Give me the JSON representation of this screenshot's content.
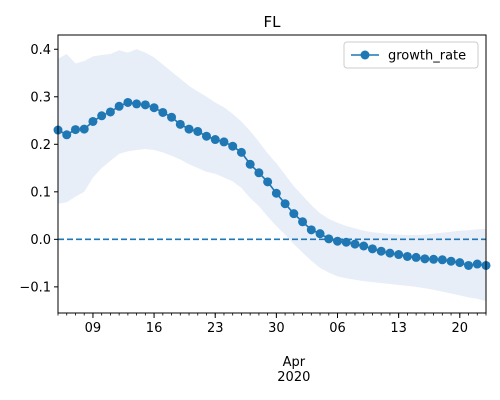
{
  "chart_data": {
    "type": "line",
    "title": "FL",
    "xlabel": "",
    "ylabel": "",
    "x_dates": [
      "2020-03-05",
      "2020-03-06",
      "2020-03-07",
      "2020-03-08",
      "2020-03-09",
      "2020-03-10",
      "2020-03-11",
      "2020-03-12",
      "2020-03-13",
      "2020-03-14",
      "2020-03-15",
      "2020-03-16",
      "2020-03-17",
      "2020-03-18",
      "2020-03-19",
      "2020-03-20",
      "2020-03-21",
      "2020-03-22",
      "2020-03-23",
      "2020-03-24",
      "2020-03-25",
      "2020-03-26",
      "2020-03-27",
      "2020-03-28",
      "2020-03-29",
      "2020-03-30",
      "2020-03-31",
      "2020-04-01",
      "2020-04-02",
      "2020-04-03",
      "2020-04-04",
      "2020-04-05",
      "2020-04-06",
      "2020-04-07",
      "2020-04-08",
      "2020-04-09",
      "2020-04-10",
      "2020-04-11",
      "2020-04-12",
      "2020-04-13",
      "2020-04-14",
      "2020-04-15",
      "2020-04-16",
      "2020-04-17",
      "2020-04-18",
      "2020-04-19",
      "2020-04-20",
      "2020-04-21",
      "2020-04-22",
      "2020-04-23"
    ],
    "xlim": [
      "2020-03-05",
      "2020-04-23"
    ],
    "ylim": [
      -0.155,
      0.43
    ],
    "x_tick_labels": [
      {
        "date": "2020-03-09",
        "label": "09"
      },
      {
        "date": "2020-03-16",
        "label": "16"
      },
      {
        "date": "2020-03-23",
        "label": "23"
      },
      {
        "date": "2020-03-30",
        "label": "30"
      },
      {
        "date": "2020-04-06",
        "label": "06"
      },
      {
        "date": "2020-04-13",
        "label": "13"
      },
      {
        "date": "2020-04-20",
        "label": "20"
      }
    ],
    "x_secondary_label": {
      "date": "2020-04-01",
      "line1": "Apr",
      "line2": "2020"
    },
    "y_ticks": [
      -0.1,
      0.0,
      0.1,
      0.2,
      0.3,
      0.4
    ],
    "y_tick_labels": [
      "−0.1",
      "0.0",
      "0.1",
      "0.2",
      "0.3",
      "0.4"
    ],
    "series": [
      {
        "name": "growth_rate",
        "color": "#1f77b4",
        "marker": "circle",
        "values": [
          0.23,
          0.22,
          0.231,
          0.232,
          0.248,
          0.26,
          0.268,
          0.28,
          0.288,
          0.285,
          0.283,
          0.277,
          0.267,
          0.257,
          0.242,
          0.232,
          0.227,
          0.217,
          0.21,
          0.205,
          0.196,
          0.183,
          0.158,
          0.14,
          0.121,
          0.097,
          0.075,
          0.054,
          0.037,
          0.02,
          0.012,
          0.001,
          -0.004,
          -0.006,
          -0.01,
          -0.014,
          -0.02,
          -0.025,
          -0.029,
          -0.032,
          -0.036,
          -0.038,
          -0.041,
          -0.042,
          -0.043,
          -0.046,
          -0.049,
          -0.055,
          -0.052,
          -0.055
        ],
        "band_upper": [
          0.38,
          0.39,
          0.37,
          0.375,
          0.385,
          0.388,
          0.39,
          0.398,
          0.393,
          0.4,
          0.393,
          0.383,
          0.368,
          0.353,
          0.338,
          0.323,
          0.311,
          0.3,
          0.288,
          0.278,
          0.264,
          0.248,
          0.228,
          0.205,
          0.181,
          0.16,
          0.136,
          0.112,
          0.092,
          0.072,
          0.055,
          0.043,
          0.035,
          0.028,
          0.023,
          0.018,
          0.015,
          0.013,
          0.011,
          0.01,
          0.009,
          0.009,
          0.01,
          0.012,
          0.014,
          0.016,
          0.018,
          0.019,
          0.021,
          0.022
        ],
        "band_lower": [
          0.075,
          0.078,
          0.09,
          0.1,
          0.13,
          0.15,
          0.165,
          0.18,
          0.185,
          0.188,
          0.19,
          0.188,
          0.183,
          0.176,
          0.168,
          0.158,
          0.15,
          0.142,
          0.138,
          0.13,
          0.122,
          0.108,
          0.087,
          0.07,
          0.048,
          0.028,
          0.01,
          -0.01,
          -0.028,
          -0.045,
          -0.06,
          -0.07,
          -0.078,
          -0.082,
          -0.085,
          -0.088,
          -0.09,
          -0.092,
          -0.094,
          -0.096,
          -0.098,
          -0.1,
          -0.103,
          -0.106,
          -0.11,
          -0.114,
          -0.118,
          -0.122,
          -0.125,
          -0.13
        ],
        "band_color": "#aec7e8"
      }
    ],
    "reference_line": {
      "y": 0.0,
      "style": "dashed",
      "color": "#1f77b4"
    },
    "legend": {
      "position": "top-right",
      "entries": [
        "growth_rate"
      ]
    },
    "grid": false
  }
}
